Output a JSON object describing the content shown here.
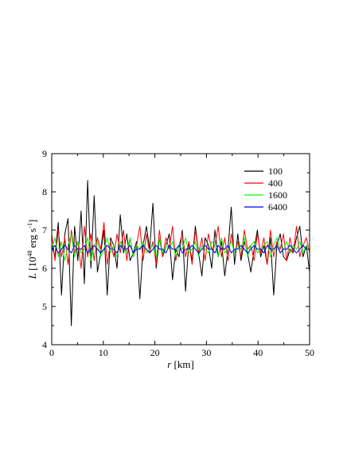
{
  "chart_data": {
    "type": "line",
    "xlabel_var": "r",
    "xlabel_unit": " [km]",
    "ylabel_var": "L",
    "ylabel_unit_pre": " [10",
    "ylabel_exp": "48",
    "ylabel_unit_mid": " erg s",
    "ylabel_exp2": "-1",
    "ylabel_unit_post": "]",
    "xlim": [
      0,
      50
    ],
    "ylim": [
      4,
      9
    ],
    "xticks": [
      0,
      10,
      20,
      30,
      40,
      50
    ],
    "yticks": [
      4,
      5,
      6,
      7,
      8,
      9
    ],
    "legend_position": "top-right",
    "grid": false,
    "mean": 6.5,
    "series": [
      {
        "name": "100",
        "color": "#000000",
        "values": [
          6.6,
          6.3,
          7.2,
          5.3,
          6.9,
          7.3,
          4.5,
          7.1,
          6.2,
          7.5,
          5.6,
          8.3,
          6.0,
          7.9,
          5.9,
          6.4,
          7.0,
          5.3,
          6.8,
          6.6,
          6.0,
          7.4,
          6.4,
          6.9,
          6.2,
          6.4,
          6.7,
          5.2,
          6.6,
          7.1,
          6.5,
          7.7,
          6.0,
          6.8,
          6.3,
          6.6,
          6.9,
          5.7,
          6.5,
          6.3,
          7.0,
          5.4,
          6.7,
          6.2,
          7.1,
          6.4,
          5.8,
          6.8,
          6.6,
          6.0,
          7.0,
          6.3,
          6.7,
          5.8,
          6.5,
          7.6,
          6.1,
          6.9,
          6.2,
          6.7,
          6.4,
          5.9,
          6.5,
          7.0,
          6.3,
          6.6,
          6.1,
          6.8,
          5.3,
          6.6,
          6.9,
          6.3,
          6.2,
          6.5,
          6.4,
          6.8,
          7.1,
          6.3,
          6.6,
          5.9
        ]
      },
      {
        "name": "400",
        "color": "#ff0000",
        "values": [
          6.9,
          6.2,
          7.0,
          6.3,
          6.8,
          6.1,
          7.0,
          6.4,
          6.7,
          6.0,
          7.1,
          6.3,
          6.9,
          6.2,
          6.8,
          6.5,
          7.2,
          6.1,
          6.7,
          6.3,
          6.9,
          6.4,
          7.0,
          6.2,
          6.8,
          6.3,
          6.6,
          7.1,
          6.2,
          6.9,
          6.4,
          6.7,
          6.1,
          7.0,
          6.3,
          6.8,
          6.5,
          7.1,
          6.2,
          6.6,
          6.9,
          6.3,
          6.7,
          6.1,
          7.0,
          6.4,
          6.8,
          6.2,
          6.9,
          6.5,
          6.6,
          7.1,
          6.3,
          6.8,
          6.2,
          6.9,
          6.4,
          6.7,
          6.3,
          7.0,
          6.5,
          6.6,
          6.2,
          6.9,
          6.4,
          6.8,
          6.1,
          7.0,
          6.3,
          6.7,
          6.5,
          6.9,
          6.2,
          6.8,
          6.4,
          7.1,
          6.3,
          6.6,
          6.8,
          6.4
        ]
      },
      {
        "name": "1600",
        "color": "#00ff00",
        "values": [
          6.5,
          6.8,
          6.3,
          6.7,
          6.2,
          6.6,
          6.9,
          6.3,
          6.7,
          6.4,
          6.5,
          6.8,
          6.2,
          6.6,
          6.7,
          6.3,
          6.5,
          6.8,
          6.4,
          6.6,
          6.3,
          6.7,
          6.5,
          6.4,
          6.8,
          6.3,
          6.6,
          6.5,
          6.7,
          6.4,
          6.5,
          6.6,
          6.3,
          6.8,
          6.4,
          6.6,
          6.5,
          6.7,
          6.3,
          6.6,
          6.5,
          6.8,
          6.4,
          6.5,
          6.7,
          6.3,
          6.6,
          6.5,
          6.4,
          6.7,
          6.6,
          6.3,
          6.8,
          6.4,
          6.5,
          6.7,
          6.4,
          6.6,
          6.5,
          6.8,
          6.3,
          6.6,
          6.7,
          6.4,
          6.5,
          6.6,
          6.7,
          6.3,
          6.6,
          6.8,
          6.4,
          6.5,
          6.7,
          6.4,
          6.6,
          6.5,
          6.7,
          6.4,
          6.6,
          6.5
        ]
      },
      {
        "name": "6400",
        "color": "#0000ff",
        "values": [
          6.5,
          6.6,
          6.4,
          6.5,
          6.6,
          6.5,
          6.4,
          6.6,
          6.5,
          6.5,
          6.6,
          6.4,
          6.5,
          6.6,
          6.5,
          6.4,
          6.5,
          6.6,
          6.5,
          6.5,
          6.4,
          6.6,
          6.5,
          6.5,
          6.6,
          6.4,
          6.5,
          6.5,
          6.6,
          6.5,
          6.4,
          6.5,
          6.6,
          6.5,
          6.5,
          6.4,
          6.6,
          6.5,
          6.5,
          6.6,
          6.4,
          6.5,
          6.5,
          6.6,
          6.5,
          6.4,
          6.5,
          6.6,
          6.5,
          6.5,
          6.4,
          6.6,
          6.5,
          6.5,
          6.6,
          6.4,
          6.5,
          6.5,
          6.6,
          6.5,
          6.4,
          6.5,
          6.6,
          6.5,
          6.5,
          6.4,
          6.6,
          6.5,
          6.5,
          6.6,
          6.4,
          6.5,
          6.5,
          6.6,
          6.5,
          6.4,
          6.5,
          6.6,
          6.5,
          6.5
        ]
      }
    ]
  }
}
